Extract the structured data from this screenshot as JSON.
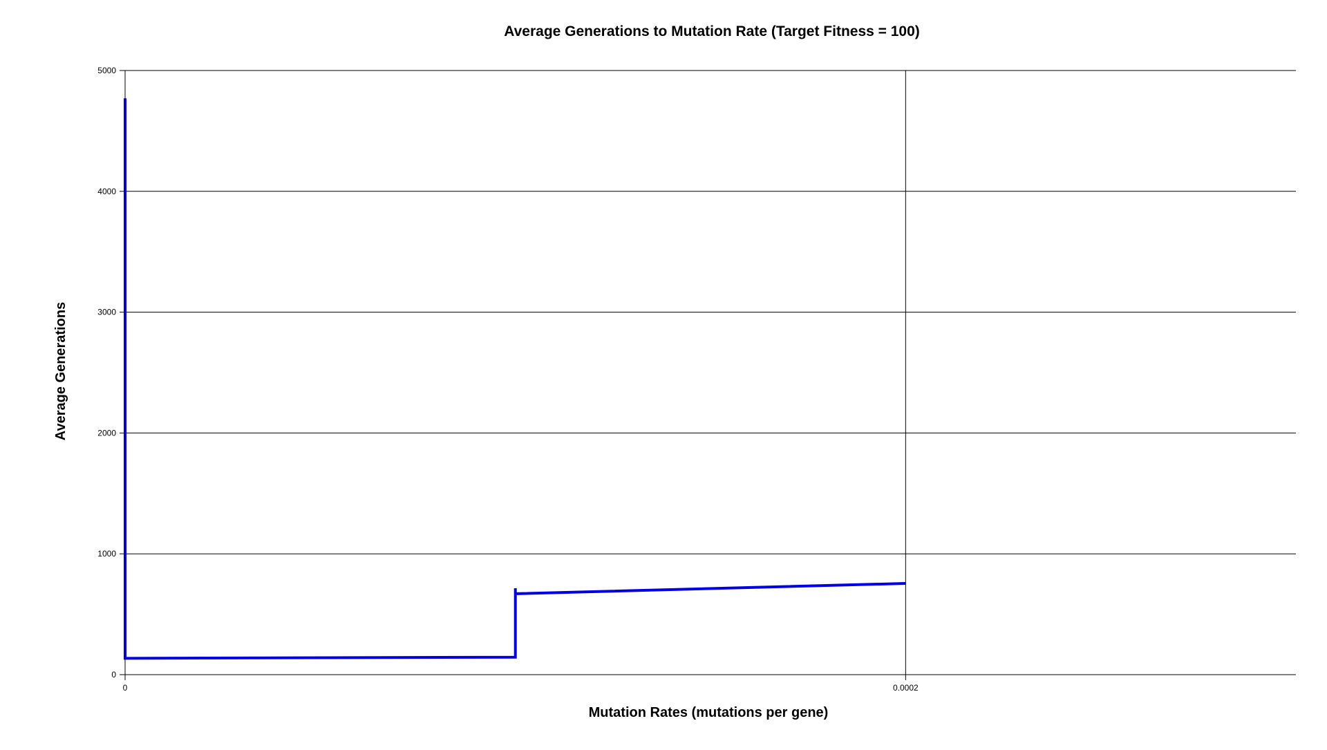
{
  "chart_data": {
    "type": "line",
    "title": "Average Generations to Mutation Rate (Target Fitness = 100)",
    "xlabel": "Mutation Rates (mutations per gene)",
    "ylabel": "Average Generations",
    "xlim": [
      0,
      0.0003
    ],
    "ylim": [
      0,
      5000
    ],
    "xticks": [
      0,
      0.0002
    ],
    "xtick_labels": [
      "0",
      "0.0002"
    ],
    "yticks": [
      0,
      1000,
      2000,
      3000,
      4000,
      5000
    ],
    "ytick_labels": [
      "0",
      "1000",
      "2000",
      "3000",
      "4000",
      "5000"
    ],
    "grid": true,
    "series": [
      {
        "color": "#0000e6",
        "x": [
          0,
          0,
          0.0001,
          0.0001,
          0.0001,
          0.0002
        ],
        "y": [
          4770,
          135,
          145,
          715,
          670,
          755
        ]
      }
    ]
  }
}
